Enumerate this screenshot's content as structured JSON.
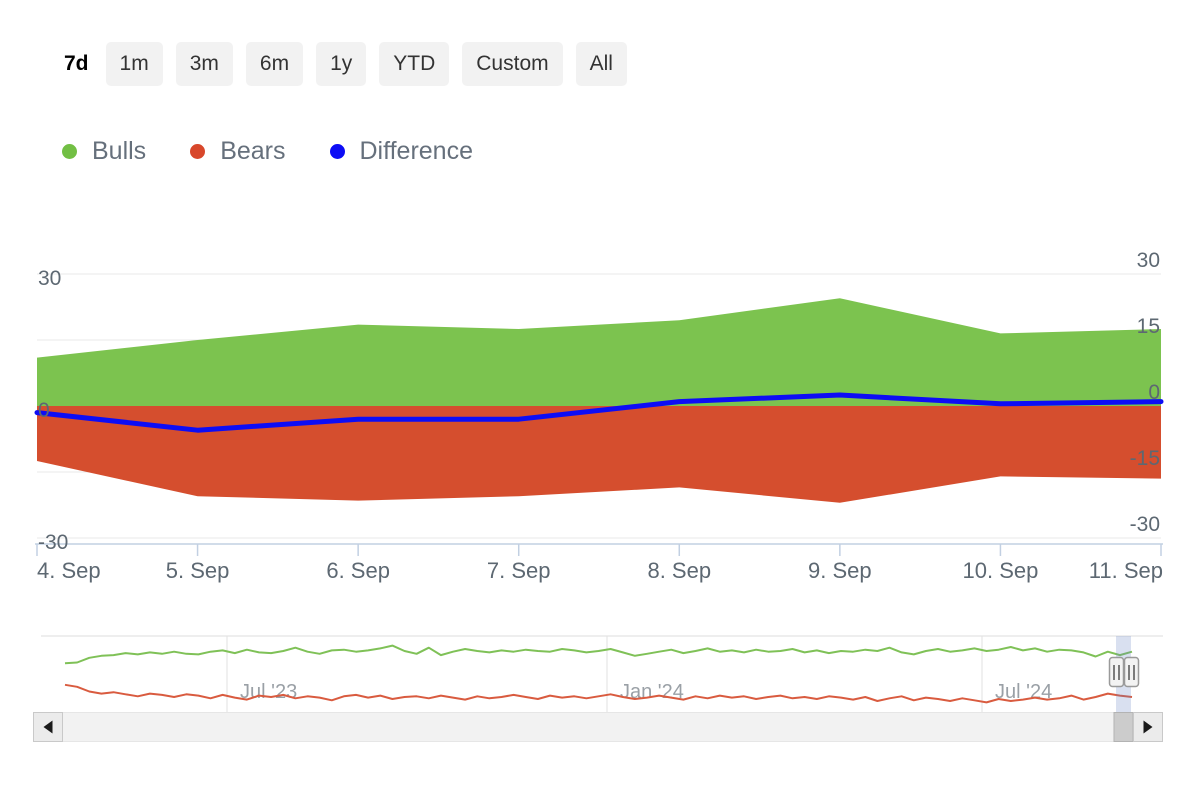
{
  "toolbar": {
    "items": [
      {
        "label": "7d",
        "selected": true
      },
      {
        "label": "1m",
        "selected": false
      },
      {
        "label": "3m",
        "selected": false
      },
      {
        "label": "6m",
        "selected": false
      },
      {
        "label": "1y",
        "selected": false
      },
      {
        "label": "YTD",
        "selected": false
      },
      {
        "label": "Custom",
        "selected": false
      },
      {
        "label": "All",
        "selected": false
      }
    ]
  },
  "legend": {
    "items": [
      {
        "label": "Bulls",
        "color": "#72bf44"
      },
      {
        "label": "Bears",
        "color": "#d8472b"
      },
      {
        "label": "Difference",
        "color": "#0d0df5"
      }
    ]
  },
  "colors": {
    "bulls_fill": "#7cc34f",
    "bears_fill": "#d54e2e",
    "difference_line": "#0d0df5",
    "axis_text": "#5d6872",
    "grid_line": "#e8e8e8",
    "axis_line": "#c2d0e2",
    "nav_label": "#9aa0a6",
    "nav_mask": "rgba(102,133,194,0.25)"
  },
  "chart_data": [
    {
      "type": "area",
      "title": "",
      "xlabel": "",
      "ylabel": "",
      "x_labels": [
        "4. Sep",
        "5. Sep",
        "6. Sep",
        "7. Sep",
        "8. Sep",
        "9. Sep",
        "10. Sep",
        "11. Sep"
      ],
      "ylim": [
        -33,
        36
      ],
      "y_ticks_left": [
        30,
        0,
        -30
      ],
      "y_ticks_right": [
        30,
        15,
        0,
        -15,
        -30
      ],
      "grid": "horizontal",
      "legend_position": "top-left",
      "series": [
        {
          "name": "Bulls",
          "type": "area",
          "color": "#7cc34f",
          "values": [
            11,
            15,
            18.5,
            17.5,
            19.5,
            24.5,
            16.5,
            17.5
          ]
        },
        {
          "name": "Bears",
          "type": "area",
          "color": "#d54e2e",
          "values": [
            -12.5,
            -20.5,
            -21.5,
            -20.5,
            -18.5,
            -22,
            -16,
            -16.5
          ]
        },
        {
          "name": "Difference",
          "type": "line",
          "color": "#0d0df5",
          "values": [
            -1.5,
            -5.5,
            -3,
            -3,
            1,
            2.5,
            0.5,
            1
          ]
        }
      ]
    },
    {
      "type": "line",
      "role": "navigator",
      "x_labels": [
        "Jul '23",
        "Jan '24",
        "Jul '24"
      ],
      "series": [
        {
          "name": "Bulls",
          "color": "#7fc157",
          "values": [
            8,
            8.5,
            12,
            13.5,
            14,
            15.5,
            14.5,
            16,
            15,
            16.5,
            15,
            14.5,
            16.5,
            17.5,
            15.5,
            18,
            16,
            15.5,
            17,
            19.5,
            16.5,
            15,
            17.5,
            18,
            16.5,
            17.5,
            19,
            21,
            17,
            15,
            19.5,
            14,
            16.5,
            18.5,
            17,
            16,
            17.5,
            16.5,
            18,
            17,
            16.5,
            18.5,
            17.5,
            16,
            17,
            18.5,
            16,
            13.5,
            15,
            16.5,
            18,
            15.5,
            17,
            19,
            16.5,
            17.5,
            16,
            18,
            16.5,
            17,
            18.5,
            16,
            17.5,
            15.5,
            17,
            16.5,
            18,
            17,
            19.5,
            16,
            14.5,
            17,
            18.5,
            16.5,
            17.5,
            19,
            17,
            18,
            20,
            17.5,
            19,
            16.5,
            18,
            17.5,
            16,
            13,
            16.5,
            14,
            16.5
          ]
        },
        {
          "name": "Bears",
          "color": "#d95b3f",
          "values": [
            -8,
            -9.5,
            -13,
            -14.5,
            -13.5,
            -15,
            -16.5,
            -14.5,
            -15.5,
            -17,
            -15,
            -16,
            -18,
            -15.5,
            -17.5,
            -19,
            -16,
            -17,
            -15.5,
            -18,
            -16.5,
            -17.5,
            -19.5,
            -16.5,
            -15.5,
            -17.5,
            -16,
            -18.5,
            -17,
            -16.5,
            -18,
            -16,
            -17.5,
            -19,
            -16.5,
            -18,
            -17,
            -15.5,
            -17,
            -18.5,
            -16,
            -17.5,
            -16.5,
            -18,
            -16.5,
            -15,
            -17,
            -18.5,
            -17.5,
            -16,
            -17.5,
            -19,
            -16.5,
            -18,
            -16,
            -17.5,
            -16.5,
            -18.5,
            -17,
            -16,
            -18,
            -17,
            -18.5,
            -16.5,
            -17.5,
            -19,
            -17,
            -20,
            -18,
            -16.5,
            -19.5,
            -17.5,
            -18.5,
            -20,
            -18,
            -19.5,
            -21,
            -18.5,
            -20,
            -19,
            -17.5,
            -19,
            -18,
            -16,
            -19,
            -17,
            -14.5,
            -16,
            -17
          ]
        }
      ]
    }
  ],
  "navigator_icons": {
    "left_handle": "navigator-handle-grip-icon",
    "right_handle": "navigator-handle-grip-icon"
  },
  "scrollbar_icons": {
    "left": "left-arrow-icon",
    "right": "right-arrow-icon"
  }
}
